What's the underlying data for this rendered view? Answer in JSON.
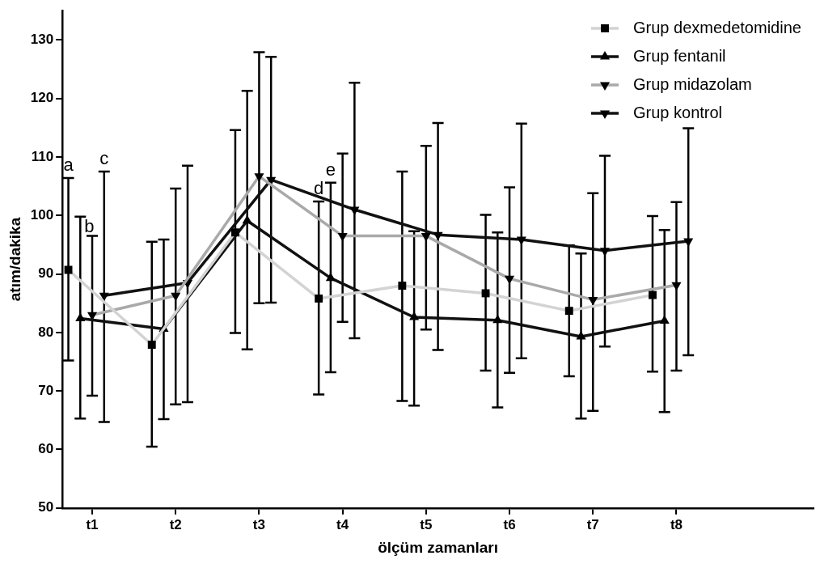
{
  "chart_data": {
    "type": "line",
    "xlabel": "ölçüm zamanları",
    "ylabel": "atım/dakika",
    "categories": [
      null,
      null,
      "t1",
      null,
      null,
      null,
      null,
      null,
      null,
      "t2",
      null,
      null,
      null,
      null,
      null,
      null,
      "t3",
      null,
      null,
      null,
      null,
      null,
      null,
      "t4",
      null,
      null,
      null,
      null,
      null,
      null,
      "t5",
      null,
      null,
      null,
      null,
      null,
      null,
      "t6",
      null,
      null,
      null,
      null,
      null,
      null,
      "t7",
      null,
      null,
      null,
      null,
      null,
      null,
      "t8",
      null,
      null,
      null,
      null,
      null,
      null,
      null,
      null,
      null,
      null,
      null
    ],
    "ylim": [
      50,
      135
    ],
    "yticks": [
      50,
      60,
      70,
      80,
      90,
      100,
      110,
      120,
      130
    ],
    "grid": false,
    "legend": "top right",
    "line_style": "solid",
    "series": [
      {
        "name": "Grup dexmedetomidine",
        "color": "#d3d3d3",
        "marker": "square",
        "values": [
          90.7,
          null,
          null,
          null,
          null,
          null,
          null,
          77.9,
          null,
          null,
          null,
          null,
          null,
          null,
          97.1,
          null,
          null,
          null,
          null,
          null,
          null,
          85.8,
          null,
          null,
          null,
          null,
          null,
          null,
          88.0,
          null,
          null,
          null,
          null,
          null,
          null,
          86.7,
          null,
          null,
          null,
          null,
          null,
          null,
          83.7,
          null,
          null,
          null,
          null,
          null,
          null,
          86.4,
          null,
          null,
          null,
          null,
          null,
          null,
          null,
          null,
          null,
          null,
          null,
          null,
          null
        ],
        "errors": [
          [
            75.2,
            106.4
          ],
          null,
          null,
          null,
          null,
          null,
          null,
          [
            60.5,
            95.5
          ],
          null,
          null,
          null,
          null,
          null,
          null,
          [
            79.9,
            114.6
          ],
          null,
          null,
          null,
          null,
          null,
          null,
          [
            69.4,
            102.4
          ],
          null,
          null,
          null,
          null,
          null,
          null,
          [
            68.3,
            107.5
          ],
          null,
          null,
          null,
          null,
          null,
          null,
          [
            73.5,
            100.1
          ],
          null,
          null,
          null,
          null,
          null,
          null,
          [
            72.5,
            94.9
          ],
          null,
          null,
          null,
          null,
          null,
          null,
          [
            73.3,
            99.9
          ],
          null,
          null,
          null,
          null,
          null,
          null,
          null,
          null,
          null,
          null,
          null,
          null,
          null
        ]
      },
      {
        "name": "Grup fentanil",
        "color": "#111111",
        "marker": "triangle",
        "values": [
          null,
          82.4,
          null,
          null,
          null,
          null,
          null,
          null,
          80.6,
          null,
          null,
          null,
          null,
          null,
          null,
          99.1,
          null,
          null,
          null,
          null,
          null,
          null,
          89.3,
          null,
          null,
          null,
          null,
          null,
          null,
          82.6,
          null,
          null,
          null,
          null,
          null,
          null,
          82.1,
          null,
          null,
          null,
          null,
          null,
          null,
          79.3,
          null,
          null,
          null,
          null,
          null,
          null,
          82.0,
          null,
          null,
          null,
          null,
          null,
          null,
          null,
          null,
          null,
          null,
          null,
          null
        ],
        "errors": [
          null,
          [
            65.3,
            99.8
          ],
          null,
          null,
          null,
          null,
          null,
          null,
          [
            65.2,
            95.9
          ],
          null,
          null,
          null,
          null,
          null,
          null,
          [
            77.1,
            121.3
          ],
          null,
          null,
          null,
          null,
          null,
          null,
          [
            73.2,
            105.6
          ],
          null,
          null,
          null,
          null,
          null,
          null,
          [
            67.5,
            97.3
          ],
          null,
          null,
          null,
          null,
          null,
          null,
          [
            67.2,
            97.1
          ],
          null,
          null,
          null,
          null,
          null,
          null,
          [
            65.3,
            93.5
          ],
          null,
          null,
          null,
          null,
          null,
          null,
          [
            66.4,
            97.5
          ],
          null,
          null,
          null,
          null,
          null,
          null,
          null,
          null,
          null,
          null,
          null,
          null
        ]
      },
      {
        "name": "Grup midazolam",
        "color": "#a9a9a9",
        "marker": "triangle-down",
        "values": [
          null,
          null,
          83.0,
          null,
          null,
          null,
          null,
          null,
          null,
          86.3,
          null,
          null,
          null,
          null,
          null,
          null,
          106.7,
          null,
          null,
          null,
          null,
          null,
          null,
          96.5,
          null,
          null,
          null,
          null,
          null,
          null,
          96.5,
          null,
          null,
          null,
          null,
          null,
          null,
          89.2,
          null,
          null,
          null,
          null,
          null,
          null,
          85.6,
          null,
          null,
          null,
          null,
          null,
          null,
          88.1,
          null,
          null,
          null,
          null,
          null,
          null,
          null,
          null,
          null,
          null,
          null
        ],
        "errors": [
          null,
          null,
          [
            69.2,
            96.5
          ],
          null,
          null,
          null,
          null,
          null,
          null,
          [
            67.7,
            104.6
          ],
          null,
          null,
          null,
          null,
          null,
          null,
          [
            85.0,
            127.9
          ],
          null,
          null,
          null,
          null,
          null,
          null,
          [
            81.8,
            110.6
          ],
          null,
          null,
          null,
          null,
          null,
          null,
          [
            80.5,
            111.9
          ],
          null,
          null,
          null,
          null,
          null,
          null,
          [
            73.1,
            104.8
          ],
          null,
          null,
          null,
          null,
          null,
          null,
          [
            66.6,
            103.8
          ],
          null,
          null,
          null,
          null,
          null,
          null,
          [
            73.5,
            102.3
          ],
          null,
          null,
          null,
          null,
          null,
          null,
          null,
          null,
          null,
          null,
          null
        ]
      },
      {
        "name": "Grup kontrol",
        "color": "#111111",
        "marker": "triangle-down",
        "values": [
          null,
          null,
          null,
          86.3,
          null,
          null,
          null,
          null,
          null,
          null,
          88.5,
          null,
          null,
          null,
          null,
          null,
          null,
          106.1,
          null,
          null,
          null,
          null,
          null,
          null,
          101.0,
          null,
          null,
          null,
          null,
          null,
          null,
          96.7,
          null,
          null,
          null,
          null,
          null,
          null,
          95.9,
          null,
          null,
          null,
          null,
          null,
          null,
          94.0,
          null,
          null,
          null,
          null,
          null,
          null,
          95.6,
          null,
          null,
          null,
          null,
          null,
          null,
          null,
          null,
          null,
          null
        ],
        "errors": [
          null,
          null,
          null,
          [
            64.7,
            107.5
          ],
          null,
          null,
          null,
          null,
          null,
          null,
          [
            68.1,
            108.5
          ],
          null,
          null,
          null,
          null,
          null,
          null,
          [
            85.1,
            127.1
          ],
          null,
          null,
          null,
          null,
          null,
          null,
          [
            79.0,
            122.7
          ],
          null,
          null,
          null,
          null,
          null,
          null,
          [
            77.0,
            115.8
          ],
          null,
          null,
          null,
          null,
          null,
          null,
          [
            75.6,
            115.7
          ],
          null,
          null,
          null,
          null,
          null,
          null,
          [
            77.6,
            110.2
          ],
          null,
          null,
          null,
          null,
          null,
          null,
          [
            76.1,
            114.9
          ],
          null,
          null,
          null,
          null,
          null,
          null,
          null,
          null,
          null,
          null
        ]
      }
    ],
    "annotations": [
      "a",
      "b",
      "c",
      "d",
      "e"
    ]
  }
}
